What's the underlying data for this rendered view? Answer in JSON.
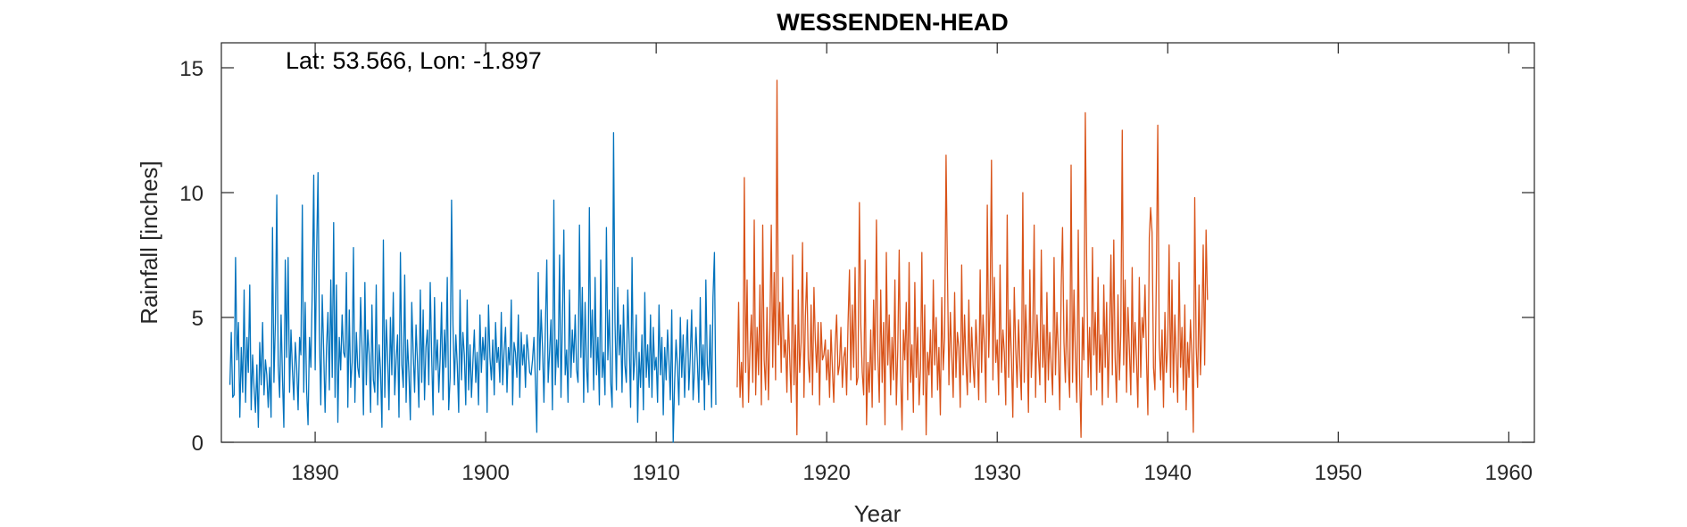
{
  "chart_data": {
    "type": "line",
    "title": "WESSENDEN-HEAD",
    "annotation": "Lat: 53.566, Lon: -1.897",
    "xlabel": "Year",
    "ylabel": "Rainfall [inches]",
    "xlim": [
      1884.5,
      1961.5
    ],
    "ylim": [
      0,
      16
    ],
    "xticks": [
      1890,
      1900,
      1910,
      1920,
      1930,
      1940,
      1950,
      1960
    ],
    "yticks": [
      0,
      5,
      10,
      15
    ],
    "grid": false,
    "series": [
      {
        "color": "#0072BD",
        "start_year": 1885.0,
        "step_years": 0.08333,
        "values": [
          2.3,
          4.4,
          1.8,
          1.9,
          7.4,
          3.3,
          4.8,
          1.0,
          3.8,
          2.0,
          6.1,
          1.6,
          4.2,
          2.8,
          6.3,
          1.3,
          3.5,
          2.2,
          1.2,
          3.1,
          0.6,
          4.0,
          2.3,
          4.8,
          1.9,
          3.3,
          2.7,
          1.4,
          3.0,
          1.0,
          8.6,
          2.4,
          4.8,
          9.9,
          3.1,
          1.8,
          5.1,
          2.5,
          0.6,
          7.3,
          3.4,
          7.4,
          2.0,
          4.5,
          2.9,
          1.7,
          4.0,
          3.0,
          1.3,
          4.2,
          3.5,
          9.5,
          2.0,
          5.6,
          2.1,
          0.7,
          4.2,
          3.0,
          6.2,
          10.7,
          2.9,
          7.6,
          10.8,
          4.4,
          1.5,
          5.9,
          3.7,
          1.2,
          3.8,
          5.2,
          2.1,
          6.5,
          2.6,
          8.8,
          1.8,
          6.3,
          0.8,
          4.2,
          2.9,
          5.1,
          3.6,
          3.4,
          6.8,
          1.4,
          5.3,
          2.2,
          3.2,
          7.8,
          1.6,
          4.4,
          3.0,
          2.6,
          5.8,
          3.8,
          1.1,
          6.4,
          2.3,
          4.5,
          3.5,
          1.2,
          5.5,
          2.5,
          2.0,
          6.3,
          1.5,
          3.9,
          2.9,
          0.6,
          8.1,
          1.8,
          4.9,
          3.4,
          1.3,
          5.0,
          2.7,
          6.0,
          1.9,
          3.3,
          4.3,
          1.0,
          7.6,
          3.1,
          2.2,
          6.7,
          1.6,
          4.1,
          2.8,
          0.9,
          5.6,
          3.6,
          2.0,
          4.7,
          3.2,
          1.4,
          6.1,
          2.4,
          5.3,
          1.7,
          3.8,
          4.5,
          2.3,
          6.4,
          3.5,
          1.1,
          5.8,
          2.9,
          4.1,
          2.0,
          3.4,
          5.6,
          1.7,
          4.5,
          3.0,
          6.6,
          1.3,
          2.6,
          9.7,
          4.7,
          2.3,
          4.3,
          3.1,
          1.2,
          6.1,
          2.5,
          4.4,
          3.5,
          1.5,
          5.7,
          2.1,
          3.9,
          1.8,
          3.2,
          4.5,
          2.4,
          3.6,
          1.5,
          5.1,
          2.8,
          4.2,
          3.3,
          4.6,
          1.2,
          5.5,
          3.4,
          2.5,
          4.1,
          1.9,
          4.8,
          3.2,
          3.8,
          2.4,
          5.2,
          2.3,
          3.7,
          4.6,
          2.0,
          3.8,
          3.1,
          5.7,
          1.5,
          4.0,
          3.6,
          2.6,
          5.1,
          1.8,
          4.4,
          3.1,
          3.9,
          2.2,
          4.3,
          3.6,
          2.8,
          2.7,
          3.3,
          4.2,
          2.5,
          0.4,
          6.8,
          2.9,
          5.3,
          3.8,
          1.6,
          4.6,
          7.3,
          2.4,
          3.6,
          4.9,
          1.3,
          9.7,
          2.3,
          4.1,
          3.0,
          7.5,
          1.8,
          4.9,
          8.5,
          2.7,
          3.7,
          1.6,
          6.1,
          2.6,
          4.5,
          3.2,
          5.1,
          2.9,
          2.4,
          8.7,
          3.4,
          6.2,
          1.6,
          5.6,
          3.0,
          2.0,
          9.4,
          3.4,
          5.3,
          2.1,
          6.6,
          2.7,
          4.2,
          1.5,
          7.3,
          2.6,
          3.6,
          1.9,
          8.6,
          3.3,
          5.3,
          2.4,
          1.4,
          12.4,
          4.8,
          2.1,
          6.2,
          3.5,
          4.7,
          2.0,
          5.5,
          3.1,
          2.4,
          6.1,
          4.0,
          1.4,
          7.4,
          2.5,
          3.4,
          5.1,
          0.8,
          3.6,
          2.2,
          4.3,
          1.3,
          6.0,
          2.6,
          3.9,
          2.2,
          5.1,
          1.8,
          4.6,
          2.9,
          3.4,
          1.6,
          5.5,
          2.7,
          4.2,
          1.1,
          3.8,
          2.5,
          4.5,
          3.2,
          1.7,
          5.3,
          0.0,
          2.4,
          4.1,
          3.0,
          1.5,
          5.0,
          2.6,
          4.3,
          1.8,
          3.6,
          4.9,
          2.1,
          3.4,
          5.3,
          1.7,
          2.9,
          4.6,
          3.2,
          1.6,
          5.8,
          2.5,
          3.9,
          1.3,
          6.5,
          3.1,
          2.3,
          4.7,
          1.4,
          5.8,
          7.6,
          1.5
        ]
      },
      {
        "color": "#D95319",
        "start_year": 1914.75,
        "step_years": 0.08333,
        "values": [
          2.2,
          5.6,
          1.8,
          3.2,
          1.4,
          10.6,
          2.8,
          6.5,
          1.6,
          3.7,
          5.1,
          2.4,
          8.9,
          1.9,
          4.6,
          2.7,
          6.3,
          1.5,
          8.7,
          3.3,
          2.1,
          5.4,
          1.7,
          4.5,
          8.7,
          3.0,
          6.8,
          2.5,
          14.5,
          3.9,
          5.6,
          2.8,
          6.6,
          3.4,
          4.1,
          2.0,
          5.1,
          3.3,
          1.6,
          7.5,
          2.3,
          4.7,
          0.3,
          6.1,
          2.8,
          4.0,
          8.0,
          1.8,
          5.0,
          6.8,
          3.3,
          2.4,
          5.5,
          1.9,
          6.2,
          4.1,
          2.8,
          4.8,
          1.5,
          4.8,
          3.3,
          3.5,
          4.1,
          2.5,
          3.7,
          1.8,
          4.5,
          2.9,
          1.6,
          3.9,
          5.1,
          2.7,
          3.1,
          4.6,
          2.2,
          3.4,
          3.8,
          1.9,
          4.8,
          6.9,
          2.5,
          5.5,
          3.0,
          7.0,
          2.3,
          2.6,
          9.6,
          4.7,
          2.8,
          1.9,
          7.3,
          0.7,
          3.2,
          2.0,
          4.5,
          1.4,
          5.7,
          2.9,
          8.9,
          3.5,
          1.6,
          6.1,
          2.4,
          4.8,
          0.7,
          7.6,
          3.1,
          5.1,
          1.9,
          4.2,
          2.5,
          6.5,
          1.5,
          3.7,
          7.7,
          2.8,
          0.5,
          4.5,
          3.3,
          5.6,
          1.7,
          7.2,
          2.4,
          3.9,
          1.2,
          6.4,
          2.6,
          4.6,
          1.5,
          3.0,
          7.6,
          1.9,
          5.5,
          0.3,
          3.6,
          2.7,
          4.5,
          1.8,
          6.5,
          3.1,
          5.0,
          2.1,
          3.8,
          1.1,
          5.8,
          2.9,
          4.2,
          11.5,
          6.7,
          2.3,
          5.2,
          3.5,
          1.8,
          6.0,
          2.6,
          4.4,
          3.8,
          1.4,
          7.1,
          2.7,
          5.1,
          3.2,
          1.9,
          5.7,
          2.4,
          4.6,
          3.1,
          2.2,
          4.9,
          3.6,
          1.7,
          6.9,
          2.8,
          5.1,
          3.9,
          1.6,
          9.5,
          3.4,
          5.7,
          11.3,
          2.5,
          6.6,
          3.2,
          4.1,
          1.9,
          7.1,
          2.8,
          4.5,
          3.6,
          1.5,
          9.1,
          2.6,
          5.3,
          3.4,
          1.0,
          6.2,
          3.8,
          2.2,
          4.9,
          3.1,
          1.7,
          10.0,
          2.4,
          5.5,
          3.9,
          1.2,
          6.9,
          2.6,
          4.2,
          8.7,
          1.8,
          5.1,
          3.5,
          2.3,
          7.7,
          3.0,
          4.7,
          1.6,
          6.0,
          2.5,
          4.4,
          3.1,
          1.9,
          7.4,
          2.7,
          5.2,
          3.6,
          1.3,
          6.2,
          8.6,
          4.0,
          2.4,
          5.7,
          3.1,
          1.8,
          11.1,
          2.4,
          6.1,
          3.4,
          1.6,
          8.5,
          2.7,
          0.2,
          5.0,
          3.3,
          13.2,
          7.0,
          2.6,
          4.6,
          1.9,
          7.8,
          3.5,
          5.2,
          2.1,
          6.6,
          2.8,
          4.3,
          1.5,
          6.3,
          3.0,
          5.6,
          1.8,
          4.2,
          7.5,
          2.7,
          8.1,
          3.4,
          1.6,
          5.9,
          2.5,
          4.4,
          12.5,
          3.1,
          6.5,
          2.0,
          5.4,
          3.7,
          1.9,
          7.0,
          2.8,
          4.8,
          3.3,
          1.4,
          6.6,
          2.6,
          5.0,
          4.2,
          6.3,
          3.4,
          1.1,
          8.2,
          9.4,
          8.4,
          3.0,
          2.1,
          6.6,
          12.7,
          3.9,
          2.5,
          4.5,
          1.4,
          5.2,
          2.8,
          3.8,
          7.9,
          2.2,
          6.5,
          2.0,
          5.1,
          3.3,
          1.6,
          7.2,
          3.0,
          4.6,
          2.1,
          5.5,
          1.3,
          4.0,
          2.6,
          4.9,
          3.5,
          0.4,
          9.8,
          3.8,
          2.2,
          6.3,
          2.7,
          4.7,
          7.9,
          3.1,
          8.5,
          5.7
        ]
      }
    ]
  }
}
